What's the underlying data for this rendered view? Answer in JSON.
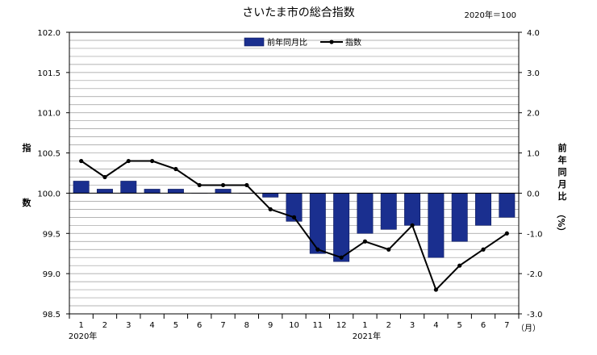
{
  "chart_data": {
    "type": "bar",
    "title": "さいたま市の総合指数",
    "base_note": "2020年＝100",
    "categories": [
      "1",
      "2",
      "3",
      "4",
      "5",
      "6",
      "7",
      "8",
      "9",
      "10",
      "11",
      "12",
      "1",
      "2",
      "3",
      "4",
      "5",
      "6",
      "7"
    ],
    "year_labels": [
      {
        "text": "2020年",
        "index": 0
      },
      {
        "text": "2021年",
        "index": 12
      }
    ],
    "x_unit": "（月）",
    "left_axis": {
      "label_top": "指",
      "label_bottom": "数",
      "ylim": [
        98.5,
        102.0
      ],
      "ticks": [
        "98.5",
        "99.0",
        "99.5",
        "100.0",
        "100.5",
        "101.0",
        "101.5",
        "102.0"
      ]
    },
    "right_axis": {
      "label_chars": [
        "前",
        "年",
        "同",
        "月",
        "比",
        "（%）"
      ],
      "ylim": [
        -3.0,
        4.0
      ],
      "ticks": [
        "-3.0",
        "-2.0",
        "-1.0",
        "0.0",
        "1.0",
        "2.0",
        "3.0",
        "4.0"
      ]
    },
    "series": [
      {
        "name": "前年同月比",
        "kind": "bar",
        "axis": "right",
        "color": "#1a2f8f",
        "values": [
          0.3,
          0.1,
          0.3,
          0.1,
          0.1,
          0.0,
          0.1,
          0.0,
          -0.1,
          -0.7,
          -1.5,
          -1.7,
          -1.0,
          -0.9,
          -0.8,
          -1.6,
          -1.2,
          -0.8,
          -0.6
        ]
      },
      {
        "name": "指数",
        "kind": "line",
        "axis": "left",
        "color": "#000000",
        "values": [
          100.4,
          100.2,
          100.4,
          100.4,
          100.3,
          100.1,
          100.1,
          100.1,
          99.8,
          99.7,
          99.3,
          99.2,
          99.4,
          99.3,
          99.6,
          98.8,
          99.1,
          99.3,
          99.5
        ]
      }
    ],
    "grid": true,
    "legend_position": "top-center"
  }
}
